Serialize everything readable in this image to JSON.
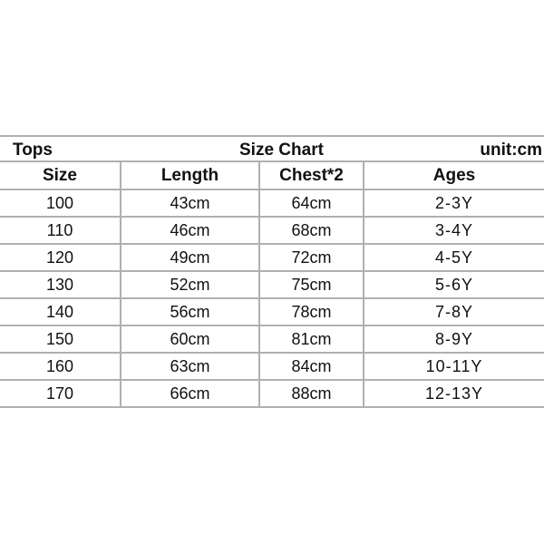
{
  "title": {
    "left": "Tops",
    "center": "Size Chart",
    "right": "unit:cm"
  },
  "headers": [
    "Size",
    "Length",
    "Chest*2",
    "Ages"
  ],
  "rows": [
    [
      "100",
      "43cm",
      "64cm",
      "2-3Y"
    ],
    [
      "110",
      "46cm",
      "68cm",
      "3-4Y"
    ],
    [
      "120",
      "49cm",
      "72cm",
      "4-5Y"
    ],
    [
      "130",
      "52cm",
      "75cm",
      "5-6Y"
    ],
    [
      "140",
      "56cm",
      "78cm",
      "7-8Y"
    ],
    [
      "150",
      "60cm",
      "81cm",
      "8-9Y"
    ],
    [
      "160",
      "63cm",
      "84cm",
      "10-11Y"
    ],
    [
      "170",
      "66cm",
      "88cm",
      "12-13Y"
    ]
  ]
}
